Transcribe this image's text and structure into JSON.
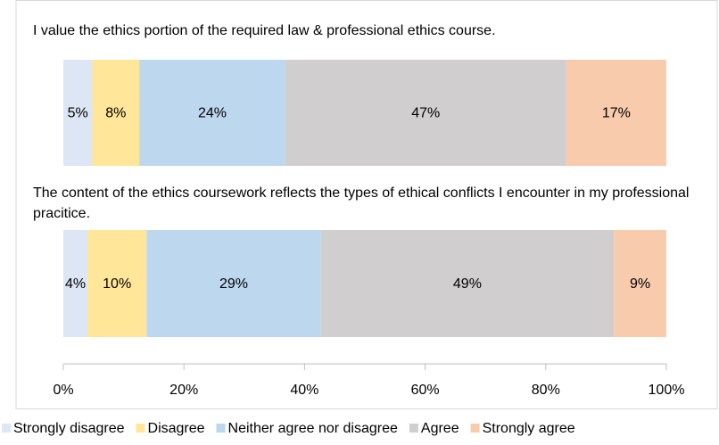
{
  "chart_data": {
    "type": "stacked_bar_horizontal",
    "categories": [
      "I value the ethics portion of the required law & professional ethics course.",
      "The content of the ethics coursework reflects the types of ethical conflicts I encounter in my professional pracitice."
    ],
    "series": [
      {
        "name": "Strongly disagree",
        "color": "#dce6f4",
        "values": [
          4.8,
          4.0
        ],
        "value_labels": [
          "5%",
          "4%"
        ]
      },
      {
        "name": "Disagree",
        "color": "#ffe699",
        "values": [
          7.8,
          9.8
        ],
        "value_labels": [
          "8%",
          "10%"
        ]
      },
      {
        "name": "Neither agree nor disagree",
        "color": "#bdd7ee",
        "values": [
          24.2,
          28.9
        ],
        "value_labels": [
          "24%",
          "29%"
        ]
      },
      {
        "name": "Agree",
        "color": "#d0cece",
        "values": [
          46.6,
          48.6
        ],
        "value_labels": [
          "47%",
          "49%"
        ]
      },
      {
        "name": "Strongly agree",
        "color": "#f8cbad",
        "values": [
          16.6,
          8.7
        ],
        "value_labels": [
          "17%",
          "9%"
        ]
      }
    ],
    "xlim": [
      0,
      100
    ],
    "xticks": [
      {
        "value": 0,
        "label": "0%"
      },
      {
        "value": 20,
        "label": "20%"
      },
      {
        "value": 40,
        "label": "40%"
      },
      {
        "value": 60,
        "label": "60%"
      },
      {
        "value": 80,
        "label": "80%"
      },
      {
        "value": 100,
        "label": "100%"
      }
    ],
    "legend": "bottom"
  }
}
